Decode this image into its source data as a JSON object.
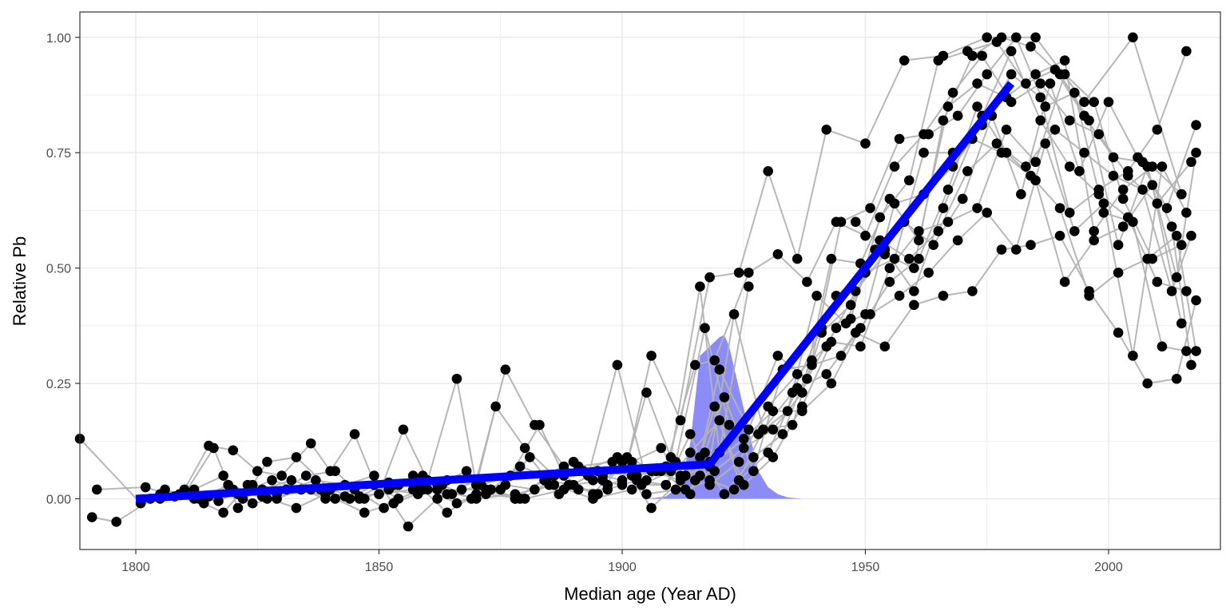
{
  "chart_data": {
    "type": "scatter",
    "xlabel": "Median age (Year AD)",
    "ylabel": "Relative Pb",
    "xlim": [
      1788.5,
      2023
    ],
    "ylim": [
      -0.11,
      1.055
    ],
    "x_ticks": [
      1800,
      1850,
      1900,
      1950,
      2000
    ],
    "x_tick_labels": [
      "1800",
      "1850",
      "1900",
      "1950",
      "2000"
    ],
    "y_ticks": [
      0,
      0.25,
      0.5,
      0.75,
      1.0
    ],
    "y_tick_labels": [
      "0.00",
      "0.25",
      "0.50",
      "0.75",
      "1.00"
    ],
    "grid": true,
    "colors": {
      "points": "#000000",
      "records": "#b3b3b3",
      "fit": "#0000ff",
      "density": "#7f7ff7",
      "grid": "#ebebeb",
      "panel_border": "#333333"
    },
    "fit_line": {
      "x": [
        1800,
        1918,
        1980
      ],
      "y": [
        0.0,
        0.075,
        0.9
      ]
    },
    "breakpoint_density": {
      "x": [
        1905,
        1909,
        1912,
        1914,
        1916,
        1918,
        1920,
        1921,
        1922,
        1924,
        1926,
        1928,
        1930,
        1932,
        1934,
        1937
      ],
      "y": [
        0.0,
        0.005,
        0.03,
        0.12,
        0.31,
        0.33,
        0.35,
        0.355,
        0.33,
        0.24,
        0.15,
        0.06,
        0.025,
        0.01,
        0.003,
        0.0
      ]
    },
    "records": [
      {
        "x": [
          1788.5,
          1801,
          1805,
          1810,
          1815,
          1820,
          1825,
          1830,
          1836,
          1840,
          1845,
          1850,
          1855,
          1860,
          1866,
          1870,
          1874,
          1880,
          1886,
          1890,
          1896,
          1900,
          1905,
          1910,
          1916,
          1920,
          1926
        ],
        "y": [
          0.13,
          -0.01,
          0.0,
          0.02,
          0.115,
          0.105,
          0.06,
          0.05,
          0.12,
          0.06,
          0.14,
          0.01,
          0.15,
          0.04,
          0.26,
          0.03,
          0.2,
          0.11,
          0.05,
          0.08,
          0.05,
          0.04,
          0.23,
          0.09,
          0.46,
          0.1,
          0.46
        ]
      },
      {
        "x": [
          1791,
          1796,
          1805,
          1812,
          1818,
          1822,
          1826,
          1832,
          1838,
          1844,
          1849,
          1854,
          1859,
          1864,
          1870,
          1876,
          1882,
          1888,
          1894,
          1900,
          1906,
          1912,
          1918,
          1924,
          1930,
          1936,
          1942,
          1950,
          1958,
          1966,
          1975,
          1985,
          1995,
          2005,
          2015
        ],
        "y": [
          -0.04,
          -0.05,
          0.01,
          0.02,
          0.05,
          0.0,
          0.02,
          0.04,
          0.02,
          0.0,
          0.03,
          0.0,
          0.02,
          0.01,
          0.04,
          0.28,
          0.16,
          0.07,
          0.04,
          0.03,
          0.31,
          0.17,
          0.48,
          0.49,
          0.71,
          0.52,
          0.8,
          0.77,
          0.95,
          0.96,
          1.0,
          1.0,
          0.86,
          1.0,
          0.66
        ]
      },
      {
        "x": [
          1792,
          1802,
          1808,
          1814,
          1819,
          1824,
          1829,
          1834,
          1839,
          1845,
          1851,
          1857,
          1862,
          1868,
          1873,
          1879,
          1884,
          1890,
          1897,
          1903,
          1909,
          1915,
          1919,
          1926,
          1932,
          1938,
          1944,
          1950,
          1956,
          1962,
          1968,
          1974,
          1980,
          1986,
          1992,
          1998,
          2004,
          2010,
          2017
        ],
        "y": [
          0.02,
          0.025,
          0.005,
          -0.01,
          0.03,
          -0.01,
          0.0,
          0.02,
          0.0,
          0.02,
          -0.02,
          0.05,
          0.03,
          0.06,
          0.02,
          0.07,
          0.05,
          0.08,
          0.03,
          0.05,
          0.07,
          0.29,
          0.3,
          0.49,
          0.53,
          0.47,
          0.6,
          0.57,
          0.72,
          0.79,
          0.88,
          0.96,
          0.86,
          0.9,
          0.82,
          0.79,
          0.7,
          0.64,
          0.73
        ]
      },
      {
        "x": [
          1803,
          1810,
          1816,
          1821,
          1827,
          1833,
          1840,
          1846,
          1852,
          1858,
          1863,
          1869,
          1875,
          1881,
          1887,
          1893,
          1899,
          1905,
          1911,
          1917,
          1922,
          1928,
          1934,
          1940,
          1946,
          1952,
          1958,
          1964,
          1970,
          1976,
          1982,
          1988,
          1994,
          2000,
          2006,
          2012,
          2018
        ],
        "y": [
          0.0,
          0.01,
          0.11,
          -0.02,
          0.08,
          0.09,
          0.02,
          0.0,
          0.02,
          0.01,
          0.03,
          0.0,
          0.02,
          0.09,
          0.01,
          0.05,
          0.29,
          0.04,
          0.08,
          0.37,
          0.16,
          0.14,
          0.19,
          0.44,
          0.38,
          0.54,
          0.6,
          0.55,
          0.65,
          0.83,
          0.66,
          0.9,
          0.71,
          0.86,
          0.74,
          0.63,
          0.81
        ]
      },
      {
        "x": [
          1806,
          1812,
          1818,
          1823,
          1829,
          1835,
          1841,
          1847,
          1853,
          1859,
          1865,
          1871,
          1877,
          1883,
          1889,
          1895,
          1901,
          1907,
          1913,
          1918,
          1923,
          1929,
          1935,
          1941,
          1947,
          1953,
          1959,
          1965,
          1971,
          1977,
          1983,
          1989,
          1995,
          2001,
          2007,
          2013,
          2017
        ],
        "y": [
          0.02,
          0.0,
          -0.03,
          0.03,
          0.01,
          0.05,
          0.06,
          0.0,
          0.03,
          0.05,
          0.01,
          0.03,
          0.05,
          0.16,
          0.03,
          0.01,
          0.09,
          0.06,
          0.05,
          0.08,
          0.4,
          0.15,
          0.16,
          0.36,
          0.42,
          0.56,
          0.52,
          0.58,
          0.71,
          0.77,
          0.72,
          0.8,
          0.75,
          0.7,
          0.67,
          0.45,
          0.57
        ]
      },
      {
        "x": [
          1809,
          1817,
          1824,
          1831,
          1837,
          1843,
          1849,
          1856,
          1862,
          1867,
          1873,
          1879,
          1885,
          1891,
          1897,
          1903,
          1909,
          1914,
          1920,
          1925,
          1931,
          1937,
          1943,
          1949,
          1955,
          1961,
          1967,
          1973,
          1979,
          1985,
          1991,
          1997,
          2003,
          2009,
          2015
        ],
        "y": [
          0.01,
          -0.005,
          0.03,
          0.02,
          0.04,
          0.03,
          0.05,
          -0.06,
          0.0,
          0.02,
          0.02,
          0.0,
          0.03,
          0.02,
          0.02,
          0.04,
          0.03,
          0.1,
          0.17,
          0.03,
          0.09,
          0.2,
          0.34,
          0.33,
          0.5,
          0.58,
          0.6,
          0.63,
          0.8,
          0.73,
          0.92,
          0.86,
          0.65,
          0.52,
          0.55
        ]
      },
      {
        "x": [
          1813,
          1819,
          1826,
          1833,
          1839,
          1846,
          1852,
          1858,
          1864,
          1870,
          1876,
          1882,
          1888,
          1894,
          1900,
          1906,
          1912,
          1917,
          1921,
          1927,
          1933,
          1939,
          1945,
          1951,
          1957,
          1963,
          1969,
          1975,
          1981,
          1987,
          1993,
          1999,
          2005,
          2011,
          2016
        ],
        "y": [
          0.0,
          0.03,
          0.005,
          -0.02,
          0.01,
          0.005,
          0.035,
          0.03,
          -0.03,
          0.01,
          0.03,
          0.02,
          0.05,
          0.01,
          0.08,
          0.06,
          0.04,
          0.1,
          0.22,
          0.06,
          0.28,
          0.29,
          0.31,
          0.4,
          0.44,
          0.49,
          0.56,
          0.62,
          0.54,
          0.77,
          0.58,
          0.64,
          0.31,
          0.72,
          0.62
        ]
      },
      {
        "x": [
          1815,
          1821,
          1828,
          1834,
          1841,
          1847,
          1853,
          1860,
          1866,
          1872,
          1878,
          1884,
          1890,
          1896,
          1902,
          1908,
          1914,
          1919,
          1924,
          1930,
          1936,
          1942,
          1948,
          1954,
          1960,
          1966,
          1972,
          1978,
          1984,
          1990,
          1996,
          2002,
          2008,
          2014,
          2018
        ],
        "y": [
          0.005,
          0.01,
          0.04,
          0.02,
          0.0,
          -0.03,
          -0.01,
          0.02,
          -0.01,
          0.02,
          0.0,
          0.04,
          0.03,
          0.04,
          0.08,
          0.11,
          0.01,
          0.2,
          0.04,
          0.1,
          0.24,
          0.27,
          0.36,
          0.33,
          0.42,
          0.44,
          0.45,
          0.54,
          0.55,
          0.57,
          0.45,
          0.36,
          0.25,
          0.26,
          0.43
        ]
      },
      {
        "x": [
          1820,
          1827,
          1836,
          1843,
          1850,
          1857,
          1864,
          1871,
          1878,
          1885,
          1892,
          1899,
          1906,
          1913,
          1918,
          1925,
          1931,
          1937,
          1943,
          1949,
          1955,
          1961,
          1967,
          1973,
          1979,
          1985,
          1991,
          1997,
          2003,
          2009,
          2015
        ],
        "y": [
          0.02,
          0.0,
          0.02,
          0.005,
          0.01,
          0.02,
          0.04,
          0.03,
          0.0,
          0.05,
          0.06,
          0.09,
          -0.02,
          0.05,
          0.07,
          0.13,
          0.19,
          0.19,
          0.25,
          0.37,
          0.47,
          0.52,
          0.67,
          0.85,
          0.75,
          0.69,
          0.47,
          0.56,
          0.59,
          0.68,
          0.38
        ]
      },
      {
        "x": [
          1854,
          1862,
          1870,
          1878,
          1886,
          1894,
          1902,
          1910,
          1915,
          1920,
          1926,
          1932,
          1938,
          1944,
          1950,
          1956,
          1962,
          1968,
          1974,
          1980,
          1986,
          1992,
          1998,
          2004,
          2010,
          2016
        ],
        "y": [
          0.03,
          0.02,
          0.0,
          0.01,
          0.03,
          0.0,
          0.02,
          0.06,
          0.04,
          0.28,
          0.15,
          0.31,
          0.26,
          0.37,
          0.4,
          0.64,
          0.66,
          0.72,
          0.81,
          0.92,
          0.87,
          0.62,
          0.67,
          0.71,
          0.8,
          0.97
        ]
      },
      {
        "x": [
          1872,
          1880,
          1888,
          1895,
          1902,
          1908,
          1913,
          1918,
          1923,
          1929,
          1935,
          1941,
          1947,
          1953,
          1959,
          1965,
          1971,
          1977,
          1983,
          1989,
          1995,
          2001,
          2007,
          2013,
          2017
        ],
        "y": [
          0.01,
          0.0,
          0.02,
          0.06,
          0.05,
          0.06,
          0.02,
          0.04,
          0.02,
          0.15,
          0.23,
          0.37,
          0.39,
          0.61,
          0.69,
          0.95,
          0.97,
          0.99,
          0.9,
          0.93,
          0.83,
          0.74,
          0.73,
          0.59,
          0.29
        ]
      },
      {
        "x": [
          1891,
          1898,
          1905,
          1911,
          1916,
          1921,
          1927,
          1933,
          1939,
          1945,
          1951,
          1957,
          1963,
          1969,
          1975,
          1981,
          1987,
          1993,
          1999,
          2005,
          2011,
          2016
        ],
        "y": [
          0.07,
          0.08,
          0.01,
          0.02,
          0.09,
          0.01,
          0.09,
          0.14,
          0.3,
          0.6,
          0.63,
          0.78,
          0.79,
          0.83,
          0.92,
          1.0,
          0.85,
          0.88,
          0.62,
          0.6,
          0.33,
          0.32
        ]
      },
      {
        "x": [
          1904,
          1909,
          1914,
          1918,
          1924,
          1930,
          1936,
          1942,
          1948,
          1954,
          1960,
          1966,
          1972,
          1978,
          1984,
          1990,
          1996,
          2002,
          2008,
          2014,
          2018
        ],
        "y": [
          0.03,
          0.03,
          0.14,
          0.03,
          0.08,
          0.2,
          0.27,
          0.33,
          0.45,
          0.53,
          0.5,
          0.82,
          0.96,
          1.0,
          0.98,
          0.92,
          0.82,
          0.55,
          0.72,
          0.48,
          0.75
        ]
      },
      {
        "x": [
          1912,
          1916,
          1919,
          1925,
          1931,
          1937,
          1943,
          1949,
          1955,
          1961,
          1967,
          1973,
          1979,
          1985,
          1991,
          1997,
          2003,
          2009,
          2015
        ],
        "y": [
          0.05,
          0.05,
          0.06,
          0.11,
          0.15,
          0.23,
          0.52,
          0.51,
          0.65,
          0.56,
          0.85,
          0.9,
          0.87,
          0.92,
          0.95,
          0.58,
          0.67,
          0.72,
          0.66
        ]
      },
      {
        "x": [
          1944,
          1950,
          1956,
          1962,
          1968,
          1974,
          1980,
          1986,
          1992,
          1998,
          2004,
          2010,
          2016
        ],
        "y": [
          0.44,
          0.49,
          0.52,
          0.75,
          0.75,
          0.83,
          0.97,
          0.82,
          0.72,
          0.66,
          0.61,
          0.47,
          0.45
        ]
      },
      {
        "x": [
          1948,
          1954,
          1960,
          1966,
          1972,
          1978,
          1984,
          1990,
          1996,
          2002,
          2008,
          2014,
          2018
        ],
        "y": [
          0.6,
          0.54,
          0.45,
          0.63,
          0.78,
          0.75,
          0.7,
          0.63,
          0.44,
          0.49,
          0.52,
          0.57,
          0.32
        ]
      }
    ]
  }
}
